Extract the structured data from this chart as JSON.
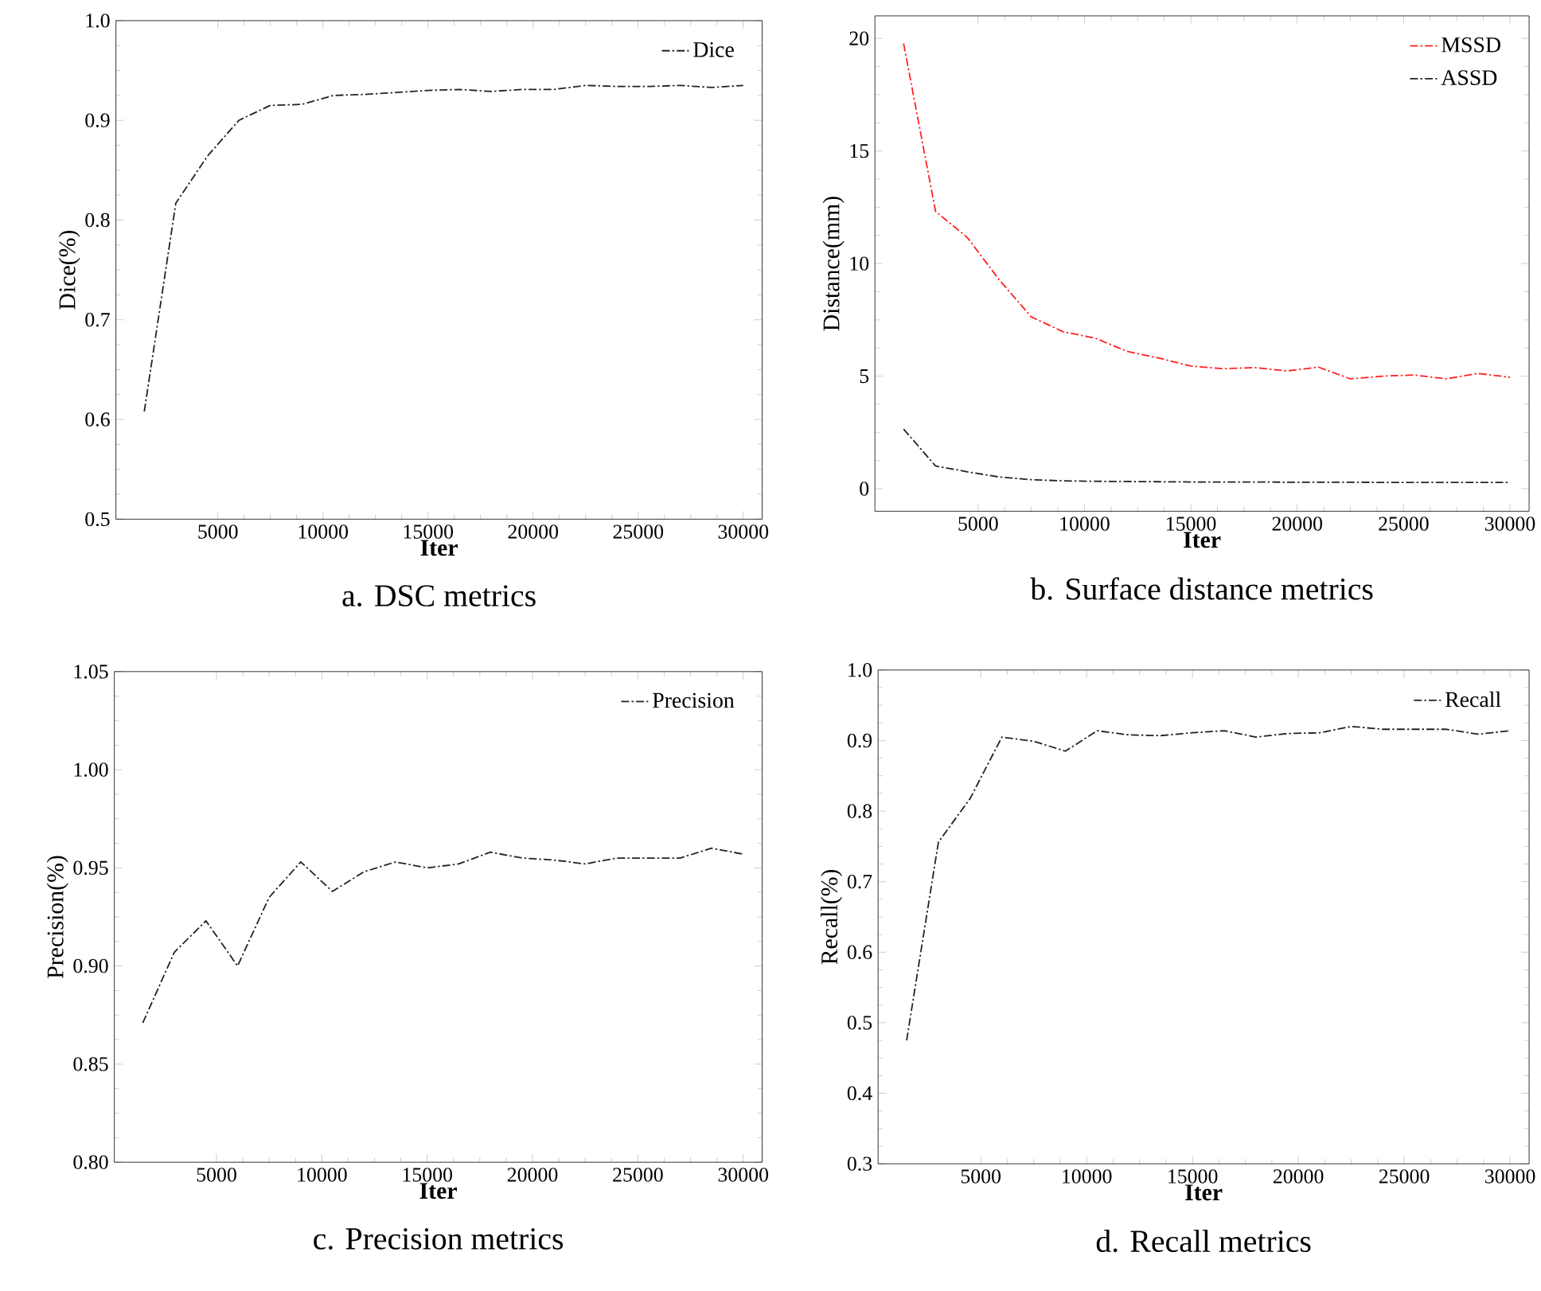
{
  "chart_data": [
    {
      "type": "line",
      "title": "a. DSC metrics",
      "xlabel": "Iter",
      "ylabel": "Dice(%)",
      "x": [
        1500,
        3000,
        4500,
        6000,
        7500,
        9000,
        10500,
        12000,
        13500,
        15000,
        16500,
        18000,
        19500,
        21000,
        22500,
        24000,
        25500,
        27000,
        28500,
        30000
      ],
      "xlim": [
        150,
        30900
      ],
      "ylim": [
        0.5,
        1.0
      ],
      "xticks": [
        5000,
        10000,
        15000,
        20000,
        25000,
        30000
      ],
      "yticks": [
        {
          "value": 0.5,
          "label": "0.5"
        },
        {
          "value": 0.6,
          "label": "0.6"
        },
        {
          "value": 0.7,
          "label": "0.7"
        },
        {
          "value": 0.8,
          "label": "0.8"
        },
        {
          "value": 0.9,
          "label": "0.9"
        },
        {
          "value": 1.0,
          "label": "1.0"
        }
      ],
      "legend": "top right",
      "line_style": "dashdot",
      "series": [
        {
          "name": "Dice",
          "color": "#222222",
          "values": [
            0.608,
            0.817,
            0.864,
            0.9,
            0.915,
            0.916,
            0.925,
            0.926,
            0.928,
            0.93,
            0.931,
            0.929,
            0.931,
            0.931,
            0.935,
            0.934,
            0.934,
            0.935,
            0.933,
            0.935
          ]
        }
      ]
    },
    {
      "type": "line",
      "title": "b. Surface distance metrics",
      "xlabel": "Iter",
      "ylabel": "Distance(mm)",
      "x": [
        1500,
        3000,
        4500,
        6000,
        7500,
        9000,
        10500,
        12000,
        13500,
        15000,
        16500,
        18000,
        19500,
        21000,
        22500,
        24000,
        25500,
        27000,
        28500,
        30000
      ],
      "xlim": [
        150,
        30900
      ],
      "ylim": [
        -1,
        21
      ],
      "xticks": [
        5000,
        10000,
        15000,
        20000,
        25000,
        30000
      ],
      "yticks": [
        0,
        5,
        10,
        15,
        20
      ],
      "legend": "top right",
      "line_style": "dashdot",
      "series": [
        {
          "name": "MSSD",
          "color": "#ff2020",
          "values": [
            19.77,
            12.32,
            11.15,
            9.27,
            7.63,
            6.97,
            6.69,
            6.1,
            5.8,
            5.45,
            5.33,
            5.38,
            5.23,
            5.4,
            4.88,
            5.0,
            5.05,
            4.88,
            5.12,
            4.95
          ]
        },
        {
          "name": "ASSD",
          "color": "#222222",
          "values": [
            2.65,
            1.01,
            0.75,
            0.52,
            0.4,
            0.35,
            0.33,
            0.32,
            0.31,
            0.3,
            0.3,
            0.3,
            0.29,
            0.29,
            0.29,
            0.28,
            0.28,
            0.28,
            0.28,
            0.28
          ]
        }
      ]
    },
    {
      "type": "line",
      "title": "c. Precision metrics",
      "xlabel": "Iter",
      "ylabel": "Precision(%)",
      "x": [
        1500,
        3000,
        4500,
        6000,
        7500,
        9000,
        10500,
        12000,
        13500,
        15000,
        16500,
        18000,
        19500,
        21000,
        22500,
        24000,
        25500,
        27000,
        28500,
        30000
      ],
      "xlim": [
        150,
        30900
      ],
      "ylim": [
        0.8,
        1.05
      ],
      "xticks": [
        5000,
        10000,
        15000,
        20000,
        25000,
        30000
      ],
      "yticks": [
        {
          "value": 0.8,
          "label": "0.80"
        },
        {
          "value": 0.85,
          "label": "0.85"
        },
        {
          "value": 0.9,
          "label": "0.90"
        },
        {
          "value": 0.95,
          "label": "0.95"
        },
        {
          "value": 1.0,
          "label": "1.00"
        },
        {
          "value": 1.05,
          "label": "1.05"
        }
      ],
      "legend": "top right",
      "line_style": "dashdot",
      "series": [
        {
          "name": "Precision",
          "color": "#222222",
          "values": [
            0.871,
            0.907,
            0.923,
            0.9,
            0.935,
            0.953,
            0.938,
            0.948,
            0.953,
            0.95,
            0.952,
            0.958,
            0.955,
            0.954,
            0.952,
            0.955,
            0.955,
            0.955,
            0.96,
            0.957
          ]
        }
      ]
    },
    {
      "type": "line",
      "title": "d. Recall metrics",
      "xlabel": "Iter",
      "ylabel": "Recall(%)",
      "x": [
        1500,
        3000,
        4500,
        6000,
        7500,
        9000,
        10500,
        12000,
        13500,
        15000,
        16500,
        18000,
        19500,
        21000,
        22500,
        24000,
        25500,
        27000,
        28500,
        30000
      ],
      "xlim": [
        150,
        30900
      ],
      "ylim": [
        0.3,
        1.0
      ],
      "xticks": [
        5000,
        10000,
        15000,
        20000,
        25000,
        30000
      ],
      "yticks": [
        {
          "value": 0.3,
          "label": "0.3"
        },
        {
          "value": 0.4,
          "label": "0.4"
        },
        {
          "value": 0.5,
          "label": "0.5"
        },
        {
          "value": 0.6,
          "label": "0.6"
        },
        {
          "value": 0.7,
          "label": "0.7"
        },
        {
          "value": 0.8,
          "label": "0.8"
        },
        {
          "value": 0.9,
          "label": "0.9"
        },
        {
          "value": 1.0,
          "label": "1.0"
        }
      ],
      "legend": "top right",
      "line_style": "dashdot",
      "series": [
        {
          "name": "Recall",
          "color": "#222222",
          "values": [
            0.475,
            0.756,
            0.818,
            0.905,
            0.899,
            0.885,
            0.914,
            0.908,
            0.907,
            0.911,
            0.914,
            0.905,
            0.91,
            0.911,
            0.92,
            0.916,
            0.916,
            0.916,
            0.909,
            0.914
          ]
        }
      ]
    }
  ]
}
